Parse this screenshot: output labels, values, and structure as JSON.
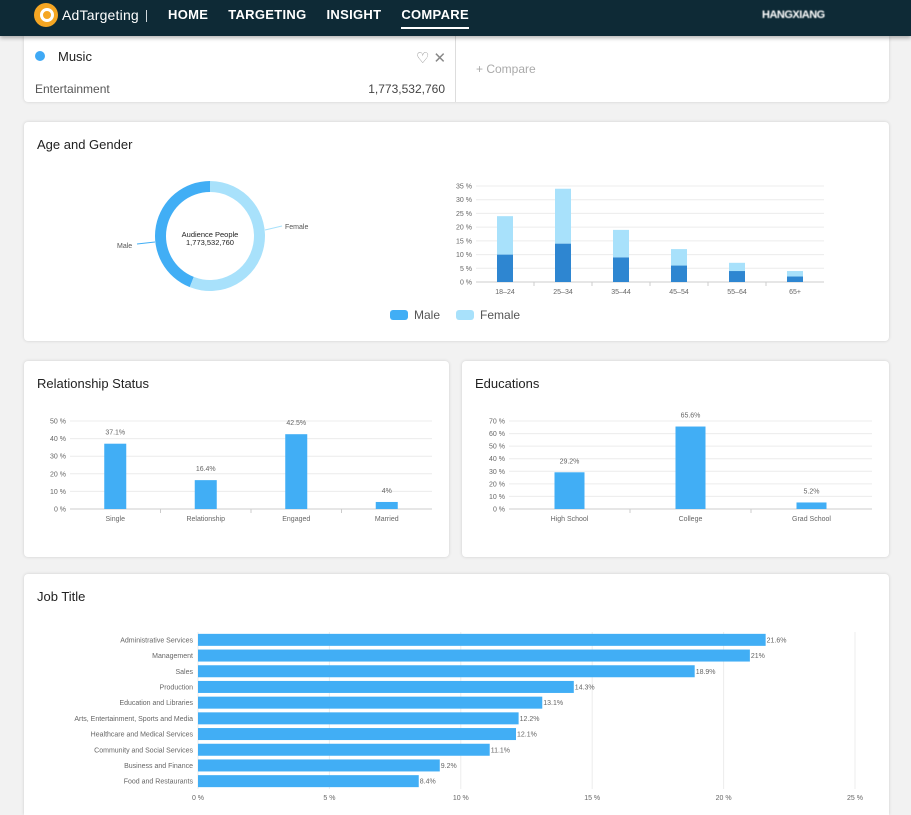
{
  "nav": {
    "logo": "AdTargeting",
    "items": [
      {
        "label": "HOME",
        "active": false
      },
      {
        "label": "TARGETING",
        "active": false
      },
      {
        "label": "INSIGHT",
        "active": false
      },
      {
        "label": "COMPARE",
        "active": true
      }
    ],
    "user": "HANGXIANG"
  },
  "compare_panel": {
    "audience_name": "Music",
    "category": "Entertainment",
    "count": "1,773,532,760",
    "add_label": "+ Compare",
    "color": "#3fa9f5"
  },
  "age_gender": {
    "title": "Age and Gender",
    "donut": {
      "center_label": "Audience People",
      "center_value": "1,773,532,760",
      "slices": [
        {
          "name": "Male",
          "value": 44,
          "color": "#41aef5"
        },
        {
          "name": "Female",
          "value": 56,
          "color": "#a8e1fb"
        }
      ]
    },
    "legend": [
      {
        "label": "Male",
        "color": "#41aef5"
      },
      {
        "label": "Female",
        "color": "#a8e1fb"
      }
    ]
  },
  "relationship": {
    "title": "Relationship Status"
  },
  "education": {
    "title": "Educations"
  },
  "job": {
    "title": "Job Title"
  },
  "chart_data": [
    {
      "type": "bar",
      "stacked": true,
      "categories": [
        "18–24",
        "25–34",
        "35–44",
        "45–54",
        "55–64",
        "65+"
      ],
      "series": [
        {
          "name": "Male",
          "values": [
            10,
            14,
            9,
            6,
            4,
            2
          ],
          "color": "#2e86d1"
        },
        {
          "name": "Female",
          "values": [
            14,
            20,
            10,
            6,
            3,
            2
          ],
          "color": "#a8e1fb"
        }
      ],
      "yticks": [
        "0 %",
        "5 %",
        "10 %",
        "15 %",
        "20 %",
        "25 %",
        "30 %",
        "35 %"
      ],
      "ylim": [
        0,
        35
      ],
      "grid": true,
      "legend": "bottom"
    },
    {
      "type": "bar",
      "categories": [
        "Single",
        "Relationship",
        "Engaged",
        "Married"
      ],
      "values": [
        37.1,
        16.4,
        42.5,
        4
      ],
      "labels": [
        "37.1%",
        "16.4%",
        "42.5%",
        "4%"
      ],
      "yticks": [
        "0 %",
        "10 %",
        "20 %",
        "30 %",
        "40 %",
        "50 %"
      ],
      "ylim": [
        0,
        50
      ],
      "color": "#41aef5",
      "grid": true
    },
    {
      "type": "bar",
      "categories": [
        "High School",
        "College",
        "Grad School"
      ],
      "values": [
        29.2,
        65.6,
        5.2
      ],
      "labels": [
        "29.2%",
        "65.6%",
        "5.2%"
      ],
      "yticks": [
        "0 %",
        "10 %",
        "20 %",
        "30 %",
        "40 %",
        "50 %",
        "60 %",
        "70 %"
      ],
      "ylim": [
        0,
        70
      ],
      "color": "#41aef5",
      "grid": true
    },
    {
      "type": "bar",
      "orientation": "horizontal",
      "categories": [
        "Administrative Services",
        "Management",
        "Sales",
        "Production",
        "Education and Libraries",
        "Arts, Entertainment, Sports and Media",
        "Healthcare and Medical Services",
        "Community and Social Services",
        "Business and Finance",
        "Food and Restaurants"
      ],
      "values": [
        21.6,
        21,
        18.9,
        14.3,
        13.1,
        12.2,
        12.1,
        11.1,
        9.2,
        8.4
      ],
      "labels": [
        "21.6%",
        "21%",
        "18.9%",
        "14.3%",
        "13.1%",
        "12.2%",
        "12.1%",
        "11.1%",
        "9.2%",
        "8.4%"
      ],
      "xticks": [
        "0 %",
        "5 %",
        "10 %",
        "15 %",
        "20 %",
        "25 %"
      ],
      "xlim": [
        0,
        25
      ],
      "color": "#41aef5",
      "grid": true
    }
  ]
}
